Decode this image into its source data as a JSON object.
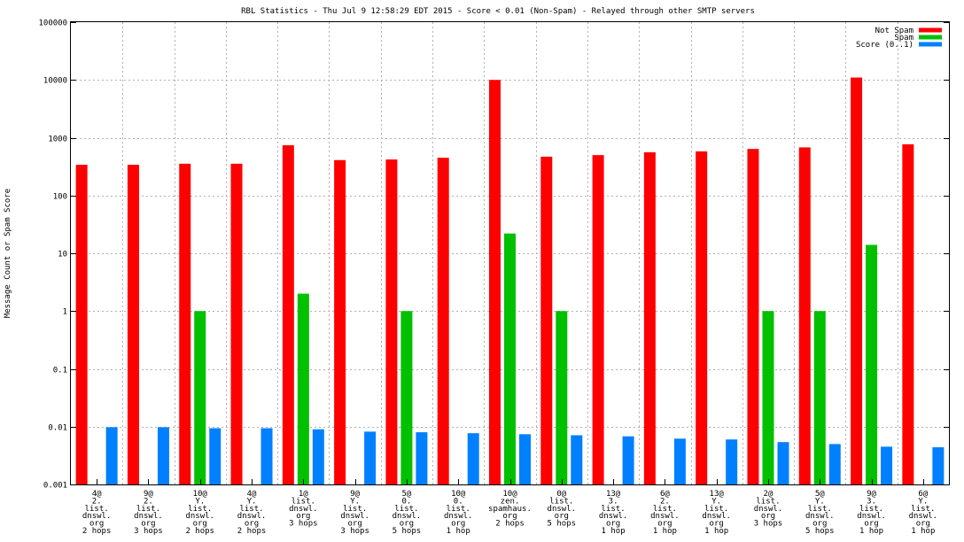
{
  "chart_data": {
    "type": "bar",
    "title": "RBL Statistics - Thu Jul  9 12:58:29 EDT 2015 - Score < 0.01 (Non-Spam) - Relayed through other SMTP servers",
    "ylabel": "Message Count or Spam Score",
    "yscale": "log",
    "ylim": [
      0.001,
      100000
    ],
    "yticks": [
      "0.001",
      "0.01",
      "0.1",
      "1",
      "10",
      "100",
      "1000",
      "10000",
      "100000"
    ],
    "grid": true,
    "legend_position": "top-right",
    "categories": [
      [
        "4@",
        "2.",
        "list.",
        "dnswl.",
        "org",
        "2 hops"
      ],
      [
        "9@",
        "2.",
        "list.",
        "dnswl.",
        "org",
        "3 hops"
      ],
      [
        "10@",
        "Y.",
        "list.",
        "dnswl.",
        "org",
        "2 hops"
      ],
      [
        "4@",
        "Y.",
        "list.",
        "dnswl.",
        "org",
        "2 hops"
      ],
      [
        "1@",
        "list.",
        "dnswl.",
        "org",
        "3 hops"
      ],
      [
        "9@",
        "Y.",
        "list.",
        "dnswl.",
        "org",
        "3 hops"
      ],
      [
        "5@",
        "0.",
        "list.",
        "dnswl.",
        "org",
        "5 hops"
      ],
      [
        "10@",
        "0.",
        "list.",
        "dnswl.",
        "org",
        "1 hop"
      ],
      [
        "10@",
        "zen.",
        "spamhaus.",
        "org",
        "2 hops"
      ],
      [
        "0@",
        "list.",
        "dnswl.",
        "org",
        "5 hops"
      ],
      [
        "13@",
        "3.",
        "list.",
        "dnswl.",
        "org",
        "1 hop"
      ],
      [
        "6@",
        "2.",
        "list.",
        "dnswl.",
        "org",
        "1 hop"
      ],
      [
        "13@",
        "Y.",
        "list.",
        "dnswl.",
        "org",
        "1 hop"
      ],
      [
        "2@",
        "list.",
        "dnswl.",
        "org",
        "3 hops"
      ],
      [
        "5@",
        "Y.",
        "list.",
        "dnswl.",
        "org",
        "5 hops"
      ],
      [
        "9@",
        "3.",
        "list.",
        "dnswl.",
        "org",
        "1 hop"
      ],
      [
        "6@",
        "Y.",
        "list.",
        "dnswl.",
        "org",
        "1 hop"
      ]
    ],
    "series": [
      {
        "name": "Not Spam",
        "color": "#ff0000",
        "values": [
          340,
          340,
          355,
          355,
          740,
          410,
          420,
          450,
          10000,
          470,
          500,
          560,
          580,
          640,
          680,
          11000,
          770
        ]
      },
      {
        "name": "Spam",
        "color": "#00c000",
        "values": [
          null,
          null,
          1,
          null,
          2,
          null,
          1,
          null,
          22,
          1,
          null,
          null,
          null,
          1,
          1,
          14,
          null
        ]
      },
      {
        "name": "Score (0..1)",
        "color": "#0080ff",
        "values": [
          0.0098,
          0.0098,
          0.0094,
          0.0094,
          0.009,
          0.0082,
          0.008,
          0.0077,
          0.0074,
          0.0071,
          0.0068,
          0.0062,
          0.006,
          0.0054,
          0.005,
          0.0045,
          0.0044
        ]
      }
    ]
  }
}
